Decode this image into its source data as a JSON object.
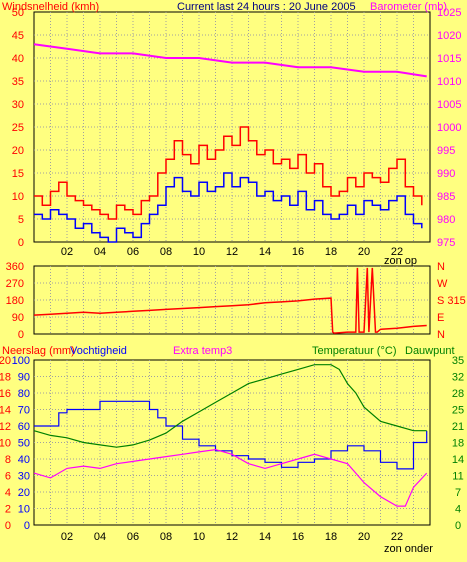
{
  "title": "Current last 24 hours : 20 June 2005",
  "chart_data": [
    {
      "id": "wind",
      "type": "line",
      "ylabel_left": "Windsnelheid (kmh)",
      "ylabel_right": "Barometer (mb)",
      "y_ticks_left": [
        "0",
        "5",
        "10",
        "15",
        "20",
        "25",
        "30",
        "35",
        "40",
        "45",
        "50"
      ],
      "y_ticks_right": [
        "975",
        "980",
        "985",
        "990",
        "995",
        "1000",
        "1005",
        "1010",
        "1015",
        "1020",
        "1025"
      ],
      "ylim_left": [
        0,
        50
      ],
      "ylim_right": [
        975,
        1025
      ],
      "x_ticks": [
        "02",
        "04",
        "06",
        "08",
        "10",
        "12",
        "14",
        "16",
        "18",
        "20",
        "22"
      ],
      "x_label": "zon op",
      "xlim": [
        0,
        24
      ],
      "grid": true,
      "colors": {
        "gust": "#ff0000",
        "wind": "#0000ff",
        "pressure": "#ff00ff"
      },
      "series": [
        {
          "key": "pressure",
          "x": [
            0,
            2,
            4,
            6,
            8,
            10,
            12,
            14,
            16,
            18,
            20,
            22,
            23.8
          ],
          "y": [
            1018,
            1017,
            1016,
            1016,
            1015,
            1015,
            1014,
            1014,
            1013,
            1013,
            1012,
            1012,
            1011
          ]
        },
        {
          "key": "gust",
          "x": [
            0,
            0.5,
            1,
            1.5,
            2,
            2.5,
            3,
            3.5,
            4,
            4.5,
            5,
            5.5,
            6,
            6.5,
            7,
            7.5,
            8,
            8.5,
            9,
            9.5,
            10,
            10.5,
            11,
            11.5,
            12,
            12.5,
            13,
            13.5,
            14,
            14.5,
            15,
            15.5,
            16,
            16.5,
            17,
            17.5,
            18,
            18.5,
            19,
            19.5,
            20,
            20.5,
            21,
            21.5,
            22,
            22.5,
            23,
            23.5
          ],
          "y": [
            10,
            8,
            11,
            13,
            10,
            9,
            8,
            7,
            6,
            5,
            8,
            7,
            6,
            9,
            10,
            15,
            18,
            22,
            19,
            17,
            21,
            18,
            20,
            23,
            21,
            25,
            22,
            19,
            20,
            17,
            18,
            16,
            19,
            15,
            17,
            12,
            10,
            11,
            14,
            12,
            15,
            14,
            13,
            16,
            18,
            12,
            10,
            8
          ]
        },
        {
          "key": "wind",
          "x": [
            0,
            0.5,
            1,
            1.5,
            2,
            2.5,
            3,
            3.5,
            4,
            4.5,
            5,
            5.5,
            6,
            6.5,
            7,
            7.5,
            8,
            8.5,
            9,
            9.5,
            10,
            10.5,
            11,
            11.5,
            12,
            12.5,
            13,
            13.5,
            14,
            14.5,
            15,
            15.5,
            16,
            16.5,
            17,
            17.5,
            18,
            18.5,
            19,
            19.5,
            20,
            20.5,
            21,
            21.5,
            22,
            22.5,
            23,
            23.5
          ],
          "y": [
            6,
            5,
            7,
            6,
            5,
            3,
            4,
            2,
            1,
            0,
            3,
            2,
            1,
            4,
            6,
            8,
            12,
            14,
            11,
            10,
            13,
            11,
            12,
            15,
            12,
            14,
            13,
            10,
            11,
            9,
            10,
            8,
            11,
            7,
            9,
            6,
            5,
            6,
            8,
            6,
            9,
            8,
            7,
            9,
            10,
            6,
            4,
            3
          ]
        }
      ]
    },
    {
      "id": "direction",
      "type": "line",
      "y_ticks_left": [
        "0",
        "90",
        "180",
        "270",
        "360"
      ],
      "y_ticks_right": [
        "N",
        "E",
        "S 315",
        "W",
        "N"
      ],
      "ylim": [
        0,
        360
      ],
      "xlim": [
        0,
        24
      ],
      "grid": true,
      "color": "#ff0000",
      "x": [
        0,
        1,
        2,
        3,
        4,
        5,
        6,
        7,
        8,
        9,
        10,
        11,
        12,
        13,
        14,
        15,
        16,
        17,
        18,
        18.1,
        18.2,
        19,
        19.5,
        19.6,
        19.7,
        20,
        20.2,
        20.3,
        20.5,
        20.7,
        20.8,
        21,
        22,
        23,
        23.8
      ],
      "y": [
        100,
        105,
        110,
        115,
        110,
        115,
        120,
        125,
        130,
        135,
        140,
        145,
        150,
        155,
        165,
        170,
        175,
        185,
        190,
        10,
        5,
        10,
        10,
        350,
        10,
        10,
        350,
        10,
        350,
        10,
        10,
        25,
        30,
        40,
        45
      ]
    },
    {
      "id": "climate",
      "type": "line",
      "labels": [
        "Neerslag (mm)",
        "Vochtigheid",
        "Extra temp3",
        "Temperatuur (°C)",
        "Dauwpunt"
      ],
      "y_ticks_rain": [
        "0",
        "2",
        "4",
        "6",
        "8",
        "10",
        "12",
        "14",
        "16",
        "18",
        "20"
      ],
      "y_ticks_humidity": [
        "0",
        "10",
        "20",
        "30",
        "40",
        "50",
        "60",
        "70",
        "80",
        "90",
        "100"
      ],
      "y_ticks_temp": [
        "0",
        "4",
        "7",
        "11",
        "14",
        "18",
        "21",
        "25",
        "28",
        "32",
        "35"
      ],
      "ylim_humidity": [
        0,
        100
      ],
      "ylim_temp": [
        0,
        35
      ],
      "x_ticks": [
        "02",
        "04",
        "06",
        "08",
        "10",
        "12",
        "14",
        "16",
        "18",
        "20",
        "22"
      ],
      "x_label": "zon onder",
      "xlim": [
        0,
        24
      ],
      "grid": true,
      "colors": {
        "humidity": "#0000ff",
        "temperature": "#008000",
        "dewpoint": "#ff00ff"
      },
      "series": [
        {
          "key": "humidity",
          "x": [
            0,
            1,
            1.5,
            2,
            3,
            4,
            5,
            6,
            7,
            7.5,
            8,
            9,
            10,
            11,
            12,
            13,
            14,
            15,
            16,
            17,
            18,
            19,
            20,
            21,
            22,
            22.5,
            23,
            23.8
          ],
          "y": [
            60,
            60,
            68,
            70,
            70,
            75,
            75,
            75,
            70,
            65,
            60,
            52,
            48,
            45,
            42,
            40,
            38,
            35,
            38,
            40,
            45,
            48,
            45,
            38,
            34,
            34,
            50,
            57
          ]
        },
        {
          "key": "temperature",
          "x": [
            0,
            1,
            2,
            3,
            4,
            5,
            6,
            7,
            8,
            9,
            10,
            11,
            12,
            13,
            14,
            15,
            16,
            17,
            18,
            18.5,
            19,
            19.5,
            20,
            21,
            22,
            23,
            23.8
          ],
          "y": [
            20,
            19,
            18.5,
            17.5,
            17,
            16.5,
            17,
            18,
            19.5,
            22,
            24,
            26,
            28,
            30,
            31,
            32,
            33,
            34,
            34,
            33,
            30,
            28,
            25,
            22,
            21,
            20,
            20
          ]
        },
        {
          "key": "dewpoint",
          "x": [
            0,
            1,
            2,
            3,
            4,
            5,
            6,
            7,
            8,
            9,
            10,
            11,
            12,
            13,
            14,
            15,
            16,
            17,
            18,
            19,
            19.5,
            20,
            21,
            22,
            22.5,
            23,
            23.8
          ],
          "y": [
            11,
            10,
            12,
            12.5,
            12,
            13,
            13.5,
            14,
            14.5,
            15,
            15.5,
            16,
            15,
            13,
            12,
            13,
            14,
            15,
            14,
            13,
            11,
            9,
            6,
            4,
            4,
            8,
            11
          ]
        }
      ]
    }
  ]
}
